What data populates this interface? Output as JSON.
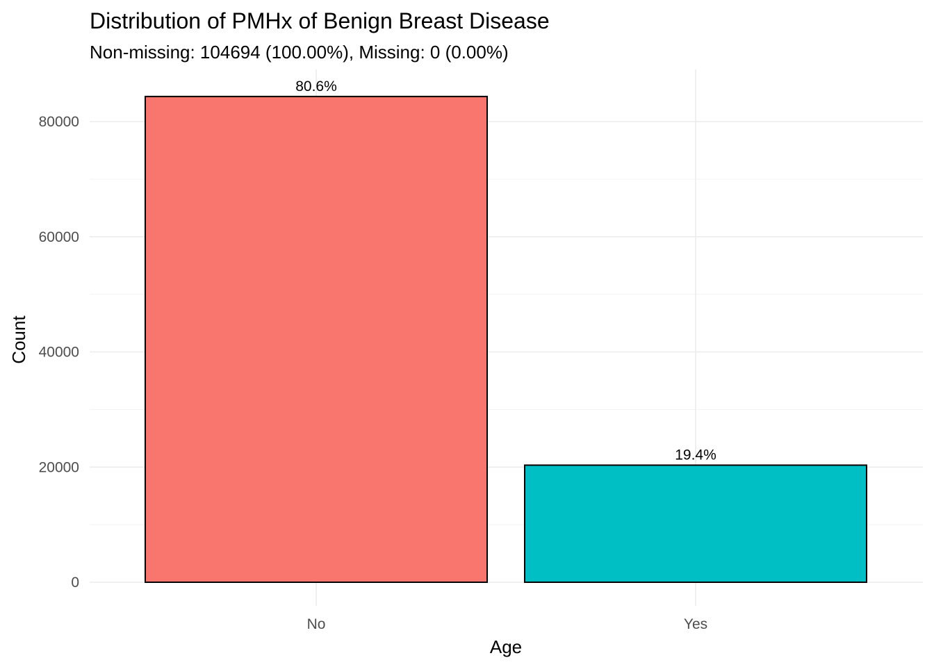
{
  "chart_data": {
    "type": "bar",
    "title": "Distribution of PMHx of Benign Breast Disease",
    "subtitle": "Non-missing: 104694 (100.00%), Missing: 0 (0.00%)",
    "xlabel": "Age",
    "ylabel": "Count",
    "categories": [
      "No",
      "Yes"
    ],
    "values": [
      84360,
      20334
    ],
    "data_labels": [
      "80.6%",
      "19.4%"
    ],
    "colors": [
      "#F8766D",
      "#00BFC4"
    ],
    "y_ticks": [
      0,
      20000,
      40000,
      60000,
      80000
    ],
    "y_tick_labels": [
      "0",
      "20000",
      "40000",
      "60000",
      "80000"
    ],
    "ylim": [
      0,
      88578
    ],
    "grid": true,
    "legend": "none"
  }
}
